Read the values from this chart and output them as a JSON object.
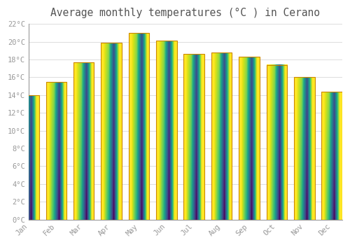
{
  "title": "Average monthly temperatures (°C ) in Cerano",
  "months": [
    "Jan",
    "Feb",
    "Mar",
    "Apr",
    "May",
    "Jun",
    "Jul",
    "Aug",
    "Sep",
    "Oct",
    "Nov",
    "Dec"
  ],
  "values": [
    14.0,
    15.5,
    17.7,
    19.9,
    21.0,
    20.1,
    18.6,
    18.8,
    18.3,
    17.4,
    16.0,
    14.4
  ],
  "bar_color": "#FFAA00",
  "bar_color_light": "#FFD050",
  "bar_edge_color": "#CC8800",
  "background_color": "#FFFFFF",
  "grid_color": "#DDDDDD",
  "ylim": [
    0,
    22
  ],
  "yticks": [
    0,
    2,
    4,
    6,
    8,
    10,
    12,
    14,
    16,
    18,
    20,
    22
  ],
  "tick_label_color": "#999999",
  "title_color": "#555555",
  "title_fontsize": 10.5,
  "font_family": "monospace",
  "bar_width": 0.75
}
